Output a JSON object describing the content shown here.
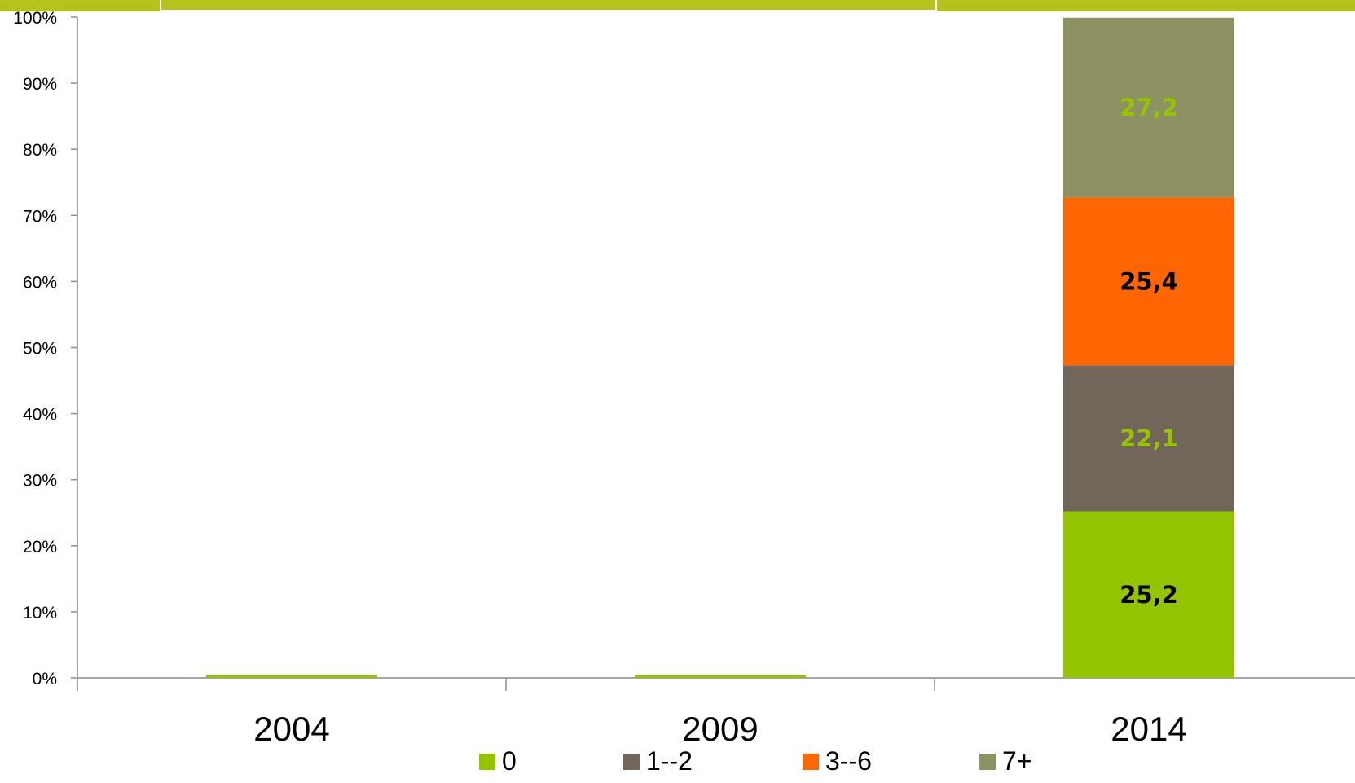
{
  "chart_data": {
    "type": "bar",
    "stacked": true,
    "categories": [
      "2004",
      "2009",
      "2014"
    ],
    "series": [
      {
        "name": "0",
        "color": "#94c300",
        "values": [
          0.4,
          0.4,
          25.2
        ],
        "labels": [
          "",
          "",
          "25,2"
        ],
        "label_color": "#000000"
      },
      {
        "name": "1--2",
        "color": "#72665a",
        "values": [
          0,
          0,
          22.1
        ],
        "labels": [
          "",
          "",
          "22,1"
        ],
        "label_color": "#94c300"
      },
      {
        "name": "3--6",
        "color": "#ff6600",
        "values": [
          0,
          0,
          25.4
        ],
        "labels": [
          "",
          "",
          "25,4"
        ],
        "label_color": "#000000"
      },
      {
        "name": "7+",
        "color": "#8e9162",
        "values": [
          0,
          0,
          27.2
        ],
        "labels": [
          "",
          "",
          "27,2"
        ],
        "label_color": "#94c300"
      }
    ],
    "ylim": [
      0,
      100
    ],
    "yticks": [
      "0%",
      "10%",
      "20%",
      "30%",
      "40%",
      "50%",
      "60%",
      "70%",
      "80%",
      "90%",
      "100%"
    ],
    "legend_position": "bottom",
    "grid": false,
    "title": "",
    "xlabel": "",
    "ylabel": "",
    "top_band_color": "#b5c41c"
  }
}
